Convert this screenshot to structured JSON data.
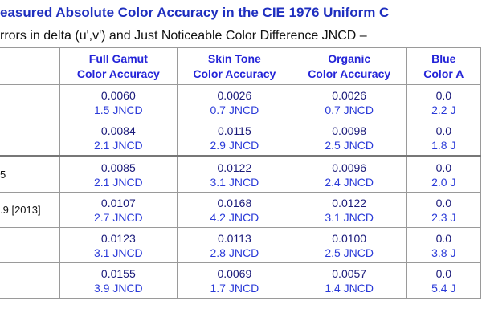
{
  "header": {
    "title": "easured Absolute Color Accuracy in the CIE 1976 Uniform C",
    "subtitle": "rrors in delta (u',v') and Just Noticeable Color Difference JNCD –"
  },
  "table": {
    "columns": [
      [
        "Full Gamut",
        "Color Accuracy"
      ],
      [
        "Skin Tone",
        "Color Accuracy"
      ],
      [
        "Organic",
        "Color Accuracy"
      ],
      [
        "Blue",
        "Color A"
      ]
    ],
    "rows": [
      {
        "cells": [
          [
            "0.0060",
            "1.5 JNCD"
          ],
          [
            "0.0026",
            "0.7 JNCD"
          ],
          [
            "0.0026",
            "0.7 JNCD"
          ],
          [
            "0.0",
            "2.2 J"
          ]
        ]
      },
      {
        "cells": [
          [
            "0.0084",
            "2.1 JNCD"
          ],
          [
            "0.0115",
            "2.9 JNCD"
          ],
          [
            "0.0098",
            "2.5 JNCD"
          ],
          [
            "0.0",
            "1.8 J"
          ]
        ]
      },
      {
        "label": "5",
        "cells": [
          [
            "0.0085",
            "2.1 JNCD"
          ],
          [
            "0.0122",
            "3.1 JNCD"
          ],
          [
            "0.0096",
            "2.4 JNCD"
          ],
          [
            "0.0",
            "2.0 J"
          ]
        ]
      },
      {
        "label": ".9 [2013]",
        "cells": [
          [
            "0.0107",
            "2.7 JNCD"
          ],
          [
            "0.0168",
            "4.2 JNCD"
          ],
          [
            "0.0122",
            "3.1 JNCD"
          ],
          [
            "0.0",
            "2.3 J"
          ]
        ]
      },
      {
        "cells": [
          [
            "0.0123",
            "3.1 JNCD"
          ],
          [
            "0.0113",
            "2.8 JNCD"
          ],
          [
            "0.0100",
            "2.5 JNCD"
          ],
          [
            "0.0",
            "3.8 J"
          ]
        ]
      },
      {
        "cells": [
          [
            "0.0155",
            "3.9 JNCD"
          ],
          [
            "0.0069",
            "1.7 JNCD"
          ],
          [
            "0.0057",
            "1.4 JNCD"
          ],
          [
            "0.0",
            "5.4 J"
          ]
        ]
      }
    ]
  }
}
